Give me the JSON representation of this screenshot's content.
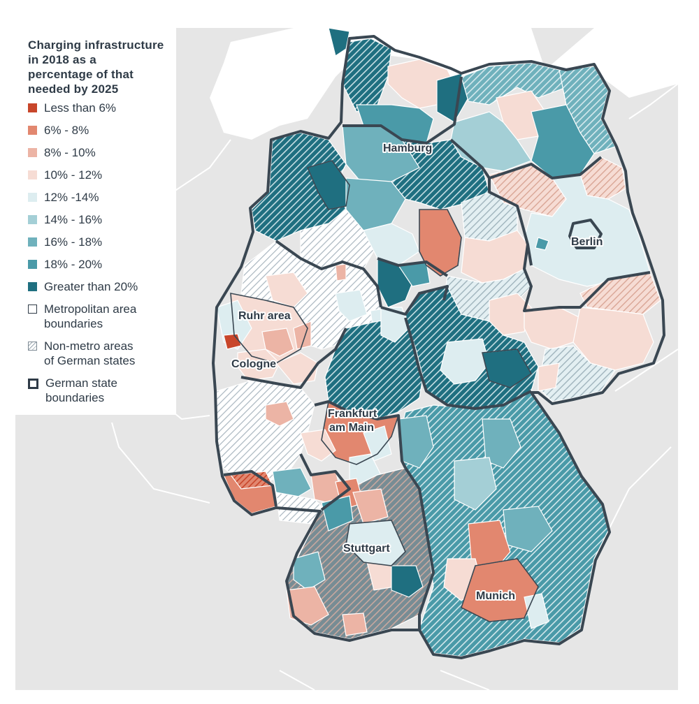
{
  "legend": {
    "title_line1": "Charging infrastructure in 2018 as a",
    "title_line2": "percentage of that needed by 2025",
    "items": [
      {
        "label": "Less than 6%",
        "color": "#c8462b"
      },
      {
        "label": "6% - 8%",
        "color": "#e2876f"
      },
      {
        "label": "8% - 10%",
        "color": "#ecb4a5"
      },
      {
        "label": "10% - 12%",
        "color": "#f6dcd4"
      },
      {
        "label": "12% -14%",
        "color": "#ddedf0"
      },
      {
        "label": "14% - 16%",
        "color": "#a4cfd6"
      },
      {
        "label": "16% - 18%",
        "color": "#6fb1bc"
      },
      {
        "label": "18% - 20%",
        "color": "#4a9aa8"
      },
      {
        "label": "Greater than 20%",
        "color": "#1f6f80"
      }
    ],
    "metro_label_1": "Metropolitan area",
    "metro_label_2": "boundaries",
    "nonmetro_label_1": "Non-metro areas",
    "nonmetro_label_2": "of German states",
    "state_label_1": "German state",
    "state_label_2": "boundaries"
  },
  "cities": {
    "hamburg": "Hamburg",
    "berlin": "Berlin",
    "ruhr": "Ruhr area",
    "cologne": "Cologne",
    "frankfurt_1": "Frankfurt",
    "frankfurt_2": "am Main",
    "stuttgart": "Stuttgart",
    "munich": "Munich"
  },
  "colors": {
    "state_border": "#3a4752",
    "background_land": "#e6e6e6"
  }
}
